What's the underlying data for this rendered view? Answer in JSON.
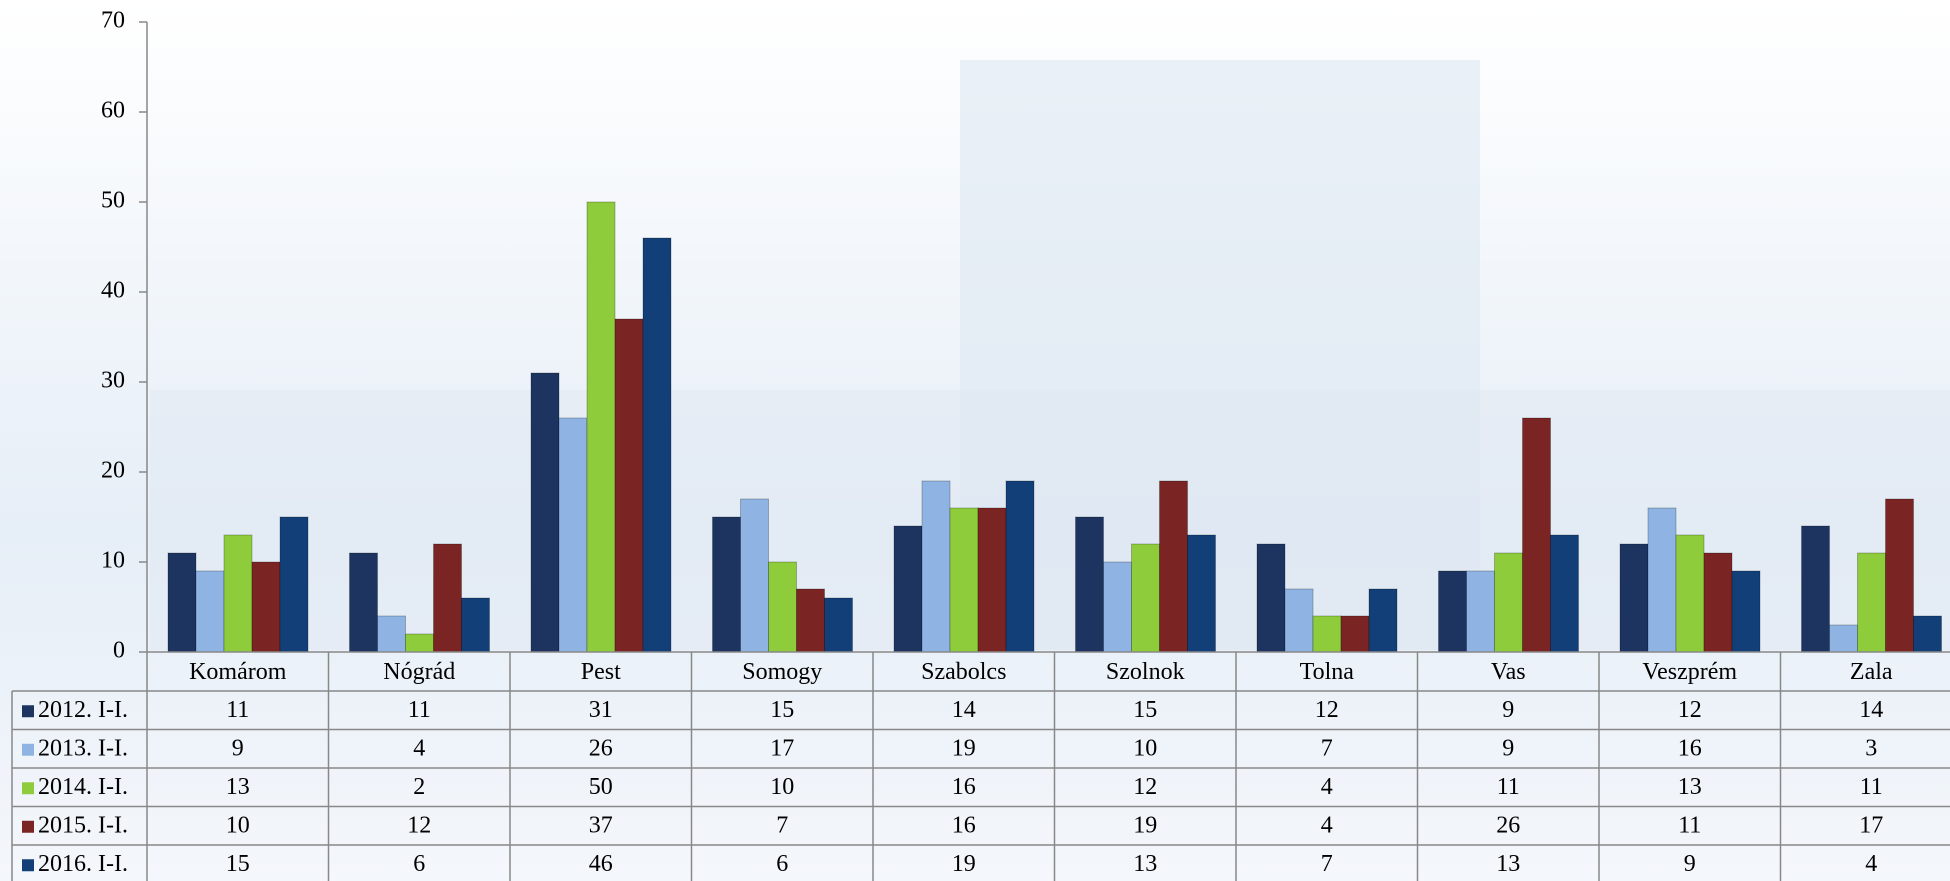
{
  "chart_data": {
    "type": "bar",
    "categories": [
      "Komárom",
      "Nógrád",
      "Pest",
      "Somogy",
      "Szabolcs",
      "Szolnok",
      "Tolna",
      "Vas",
      "Veszprém",
      "Zala"
    ],
    "series": [
      {
        "name": "2012. I-I.",
        "color": "#1d3461",
        "values": [
          11,
          11,
          31,
          15,
          14,
          15,
          12,
          9,
          12,
          14
        ]
      },
      {
        "name": "2013. I-I.",
        "color": "#8fb4e3",
        "values": [
          9,
          4,
          26,
          17,
          19,
          10,
          7,
          9,
          16,
          3
        ]
      },
      {
        "name": "2014. I-I.",
        "color": "#8fcc3c",
        "values": [
          13,
          2,
          50,
          10,
          16,
          12,
          4,
          11,
          13,
          11
        ]
      },
      {
        "name": "2015. I-I.",
        "color": "#7a2424",
        "values": [
          10,
          12,
          37,
          7,
          16,
          19,
          4,
          26,
          11,
          17
        ]
      },
      {
        "name": "2016. I-I.",
        "color": "#123f78",
        "values": [
          15,
          6,
          46,
          6,
          19,
          13,
          7,
          13,
          9,
          4
        ]
      }
    ],
    "ylim": [
      0,
      70
    ],
    "yticks": [
      0,
      10,
      20,
      30,
      40,
      50,
      60,
      70
    ]
  }
}
